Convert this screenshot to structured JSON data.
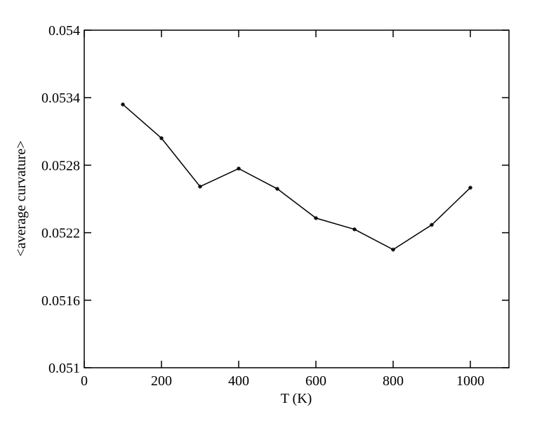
{
  "chart_data": {
    "type": "line",
    "x_label": "T (K)",
    "y_label": "<average curvature>",
    "x": [
      100,
      200,
      300,
      400,
      500,
      600,
      700,
      800,
      900,
      1000
    ],
    "series": [
      {
        "color": "#000000",
        "values": [
          0.05334,
          0.05304,
          0.05261,
          0.05277,
          0.05259,
          0.05233,
          0.05223,
          0.05205,
          0.05227,
          0.0526
        ]
      }
    ],
    "xlim": [
      0,
      1100
    ],
    "xticks": [
      0,
      200,
      400,
      600,
      800,
      1000
    ],
    "ylim": [
      0.051,
      0.054
    ],
    "yticks": [
      0.051,
      0.0516,
      0.0522,
      0.0528,
      0.0534,
      0.054
    ],
    "grid": false
  }
}
